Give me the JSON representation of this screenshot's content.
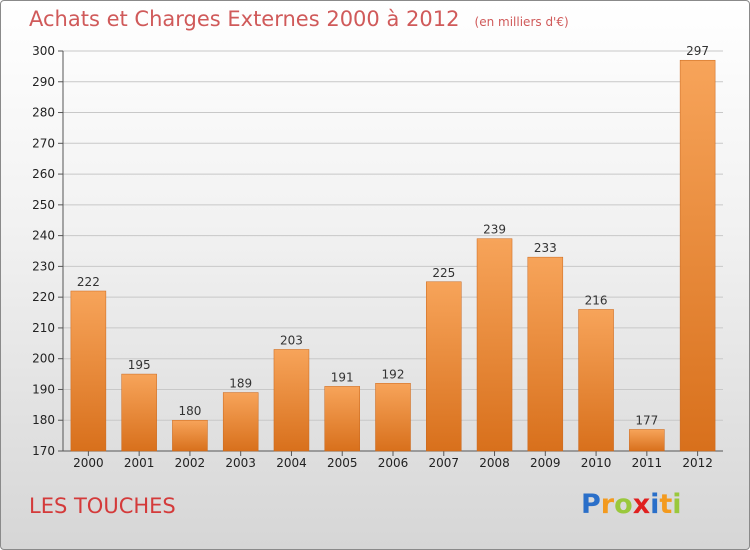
{
  "header": {
    "title": "Achats et Charges Externes 2000 à 2012",
    "unit": "(en milliers d'€)"
  },
  "footer": {
    "commune": "LES TOUCHES"
  },
  "brand": {
    "name": "Proxiti",
    "letters": [
      {
        "char": "P",
        "color": "#2a6fc9"
      },
      {
        "char": "r",
        "color": "#f39a1e"
      },
      {
        "char": "o",
        "color": "#9ac83c"
      },
      {
        "char": "x",
        "color": "#e02020"
      },
      {
        "char": "i",
        "color": "#2a6fc9"
      },
      {
        "char": "t",
        "color": "#f39a1e"
      },
      {
        "char": "i",
        "color": "#9ac83c"
      }
    ]
  },
  "colors": {
    "bar_light": "#f7a45a",
    "bar_dark": "#d8701c",
    "title": "#d05a5a",
    "footer": "#d43a3a"
  },
  "chart_data": {
    "type": "bar",
    "title": "Achats et Charges Externes 2000 à 2012",
    "subtitle": "(en milliers d'€)",
    "xlabel": "",
    "ylabel": "",
    "categories": [
      "2000",
      "2001",
      "2002",
      "2003",
      "2004",
      "2005",
      "2006",
      "2007",
      "2008",
      "2009",
      "2010",
      "2011",
      "2012"
    ],
    "values": [
      222,
      195,
      180,
      189,
      203,
      191,
      192,
      225,
      239,
      233,
      216,
      177,
      297
    ],
    "ylim": [
      170,
      300
    ],
    "yticks": [
      170,
      180,
      190,
      200,
      210,
      220,
      230,
      240,
      250,
      260,
      270,
      280,
      290,
      300
    ],
    "grid": true
  }
}
